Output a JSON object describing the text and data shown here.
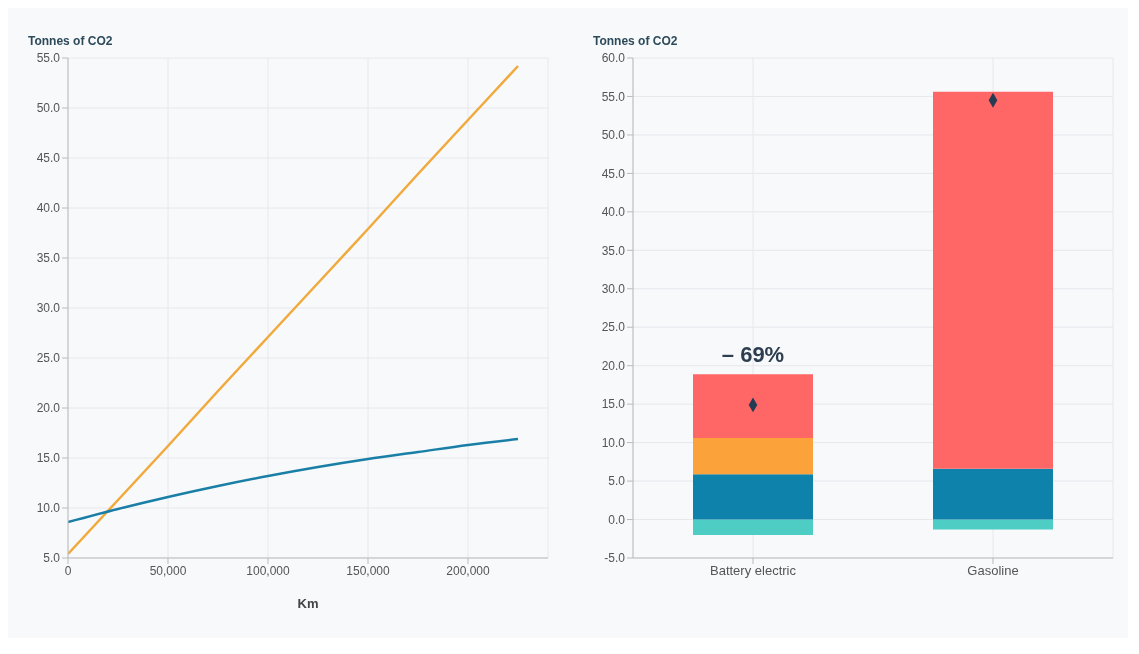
{
  "chart_data": [
    {
      "type": "line",
      "ylabel": "Tonnes of CO2",
      "xlabel": "Km",
      "x": [
        0,
        25000,
        50000,
        75000,
        100000,
        125000,
        150000,
        175000,
        200000,
        225000
      ],
      "series": [
        {
          "color": "#f2a93b",
          "values": [
            5.4,
            10.8,
            16.2,
            21.7,
            27.1,
            32.5,
            37.9,
            43.4,
            48.8,
            54.2
          ]
        },
        {
          "color": "#1a7fa6",
          "values": [
            8.6,
            9.9,
            11.1,
            12.2,
            13.2,
            14.1,
            14.9,
            15.6,
            16.3,
            16.9
          ]
        }
      ],
      "xlim": [
        0,
        240000
      ],
      "xticks": [
        0,
        {
          "value": 50000,
          "label": "50,000"
        },
        {
          "value": 100000,
          "label": "100,000"
        },
        {
          "value": 150000,
          "label": "150,000"
        },
        {
          "value": 200000,
          "label": "200,000"
        }
      ],
      "ylim": [
        5,
        55
      ],
      "yticks": [
        {
          "value": 5,
          "label": "5.0"
        },
        {
          "value": 10,
          "label": "10.0"
        },
        {
          "value": 15,
          "label": "15.0"
        },
        {
          "value": 20,
          "label": "20.0"
        },
        {
          "value": 25,
          "label": "25.0"
        },
        {
          "value": 30,
          "label": "30.0"
        },
        {
          "value": 35,
          "label": "35.0"
        },
        {
          "value": 40,
          "label": "40.0"
        },
        {
          "value": 45,
          "label": "45.0"
        },
        {
          "value": 50,
          "label": "50.0"
        },
        {
          "value": 55,
          "label": "55.0"
        }
      ],
      "grid": true,
      "marker": "none",
      "line_style": "solid"
    },
    {
      "type": "bar",
      "ylabel": "Tonnes of CO2",
      "categories": [
        "Battery electric",
        "Gasoline"
      ],
      "stacked": true,
      "series": [
        {
          "color": "#4ecdc4",
          "values": [
            -2.0,
            -1.3
          ]
        },
        {
          "color": "#0e82ab",
          "values": [
            5.9,
            6.6
          ]
        },
        {
          "color": "#fba23a",
          "values": [
            4.7,
            null
          ]
        },
        {
          "color": "#ff6666",
          "values": [
            8.3,
            49.0
          ]
        },
        {
          "type": "scatter",
          "color": "#243b53",
          "marker": "diamond",
          "x": [
            "Battery electric",
            "Gasoline"
          ],
          "values": [
            14.9,
            54.5
          ]
        }
      ],
      "ylim": [
        -5,
        60
      ],
      "yticks": [
        {
          "value": -5,
          "label": "-5.0"
        },
        {
          "value": 0,
          "label": "0.0"
        },
        {
          "value": 5,
          "label": "5.0"
        },
        {
          "value": 10,
          "label": "10.0"
        },
        {
          "value": 15,
          "label": "15.0"
        },
        {
          "value": 20,
          "label": "20.0"
        },
        {
          "value": 25,
          "label": "25.0"
        },
        {
          "value": 30,
          "label": "30.0"
        },
        {
          "value": 35,
          "label": "35.0"
        },
        {
          "value": 40,
          "label": "40.0"
        },
        {
          "value": 45,
          "label": "45.0"
        },
        {
          "value": 50,
          "label": "50.0"
        },
        {
          "value": 55,
          "label": "55.0"
        },
        {
          "value": 60,
          "label": "60.0"
        }
      ],
      "annotations": [
        "– 69%"
      ],
      "grid": true
    }
  ]
}
